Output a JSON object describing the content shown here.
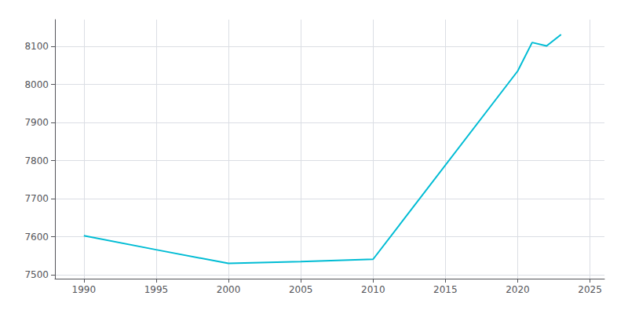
{
  "chart_data": {
    "type": "line",
    "x": [
      1990,
      1995,
      2000,
      2005,
      2010,
      2020,
      2021,
      2022,
      2023
    ],
    "values": [
      7603,
      7566,
      7530,
      7535,
      7541,
      8035,
      8110,
      8101,
      8131
    ],
    "color": "#00BCD4",
    "xlim": [
      1988,
      2026
    ],
    "ylim": [
      7490,
      8170
    ],
    "xticks": [
      1990,
      1995,
      2000,
      2005,
      2010,
      2015,
      2020,
      2025
    ],
    "yticks": [
      7500,
      7600,
      7700,
      7800,
      7900,
      8000,
      8100
    ],
    "grid": true
  }
}
